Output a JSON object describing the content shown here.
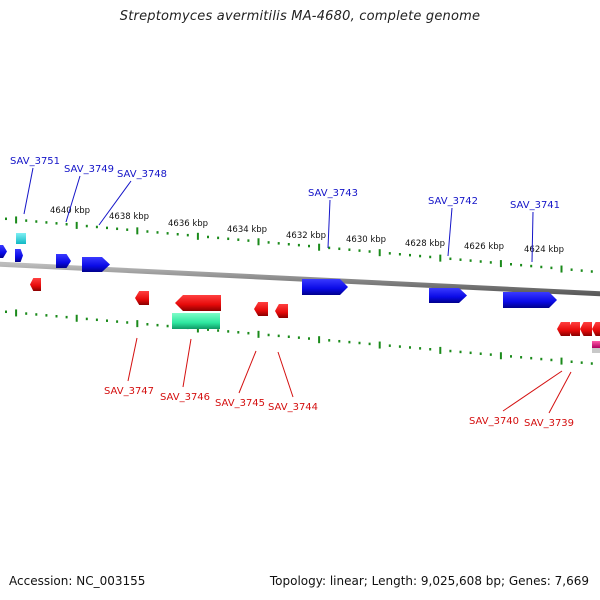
{
  "title": "Streptomyces avermitilis MA-4680, complete genome",
  "footer": {
    "accession": "Accession: NC_003155",
    "summary": "Topology: linear; Length: 9,025,608 bp; Genes: 7,669"
  },
  "colors": {
    "forward_gene": "#0a0ae6",
    "reverse_gene": "#e60a0a",
    "rna_gene": "#22d0d8",
    "pseudo_gene": "#2ee8a0",
    "other_gene": "#e0107a",
    "forward_label": "#1515c8",
    "reverse_label": "#d41010",
    "tick": "#1a8a1a",
    "backbone": "#8a8a8a"
  },
  "kbp_ticks": [
    "4640 kbp",
    "4638 kbp",
    "4636 kbp",
    "4634 kbp",
    "4632 kbp",
    "4630 kbp",
    "4628 kbp",
    "4626 kbp",
    "4624 kbp"
  ],
  "forward_labels": [
    "SAV_3751",
    "SAV_3749",
    "SAV_3748",
    "SAV_3743",
    "SAV_3742",
    "SAV_3741"
  ],
  "reverse_labels": [
    "SAV_3747",
    "SAV_3746",
    "SAV_3745",
    "SAV_3744",
    "SAV_3740",
    "SAV_3739"
  ]
}
